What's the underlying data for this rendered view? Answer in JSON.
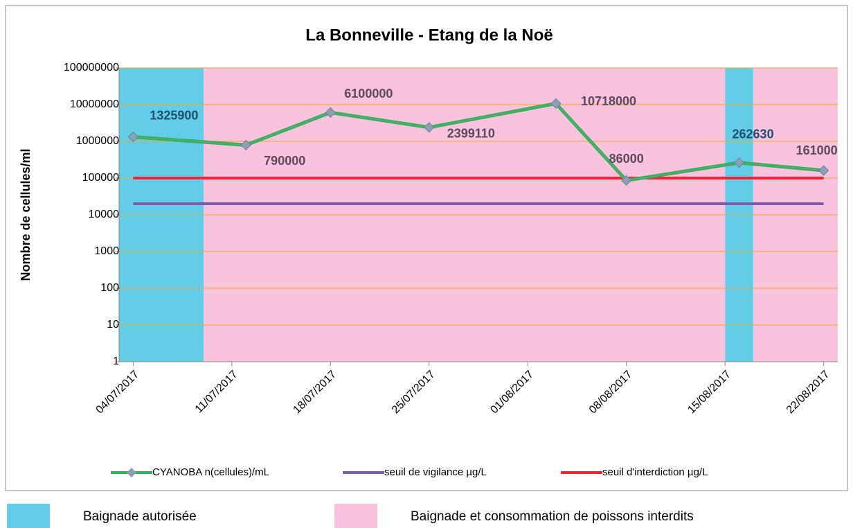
{
  "chart_data": {
    "type": "line",
    "title": "La Bonneville - Etang de la Noë",
    "y_label": "Nombre de cellules/ml",
    "log_y": true,
    "grid": true,
    "legend": "bottom",
    "x": [
      "2017-07-04",
      "2017-07-12",
      "2017-07-18",
      "2017-07-25",
      "2017-08-03",
      "2017-08-08",
      "2017-08-16",
      "2017-08-22"
    ],
    "xlim": [
      "2017-07-03",
      "2017-08-23"
    ],
    "xticks": [
      {
        "value": "2017-07-04",
        "label": "04/07/2017"
      },
      {
        "value": "2017-07-11",
        "label": "11/07/2017"
      },
      {
        "value": "2017-07-18",
        "label": "18/07/2017"
      },
      {
        "value": "2017-07-25",
        "label": "25/07/2017"
      },
      {
        "value": "2017-08-01",
        "label": "01/08/2017"
      },
      {
        "value": "2017-08-08",
        "label": "08/08/2017"
      },
      {
        "value": "2017-08-15",
        "label": "15/08/2017"
      },
      {
        "value": "2017-08-22",
        "label": "22/08/2017"
      }
    ],
    "ylim": [
      1,
      100000000
    ],
    "yticks": [
      1,
      10,
      100,
      1000,
      10000,
      100000,
      1000000,
      10000000,
      100000000
    ],
    "series": [
      {
        "name": "CYANOBA  n(cellules)/mL",
        "color": "#2db35a",
        "marker_color": "#8c9fb5",
        "values": [
          1325900,
          790000,
          6100000,
          2399110,
          10718000,
          86000,
          262630,
          161000
        ]
      },
      {
        "name": "seuil de vigilance µg/L",
        "color": "#7b5ea7",
        "values": [
          20000,
          20000,
          20000,
          20000,
          20000,
          20000,
          20000,
          20000
        ]
      },
      {
        "name": "seuil d'interdiction µg/L",
        "color": "#ff1f2f",
        "values": [
          100000,
          100000,
          100000,
          100000,
          100000,
          100000,
          100000,
          100000
        ]
      }
    ],
    "bands": [
      {
        "name": "Baignade autorisée",
        "color": "#63cde8",
        "spans": [
          [
            "2017-07-03",
            "2017-07-09"
          ],
          [
            "2017-08-15",
            "2017-08-17"
          ]
        ]
      },
      {
        "name": "Baignade et consommation de poissons interdits",
        "color": "#f9c3dd",
        "spans": [
          [
            "2017-07-09",
            "2017-08-15"
          ],
          [
            "2017-08-17",
            "2017-08-23"
          ]
        ]
      }
    ]
  }
}
